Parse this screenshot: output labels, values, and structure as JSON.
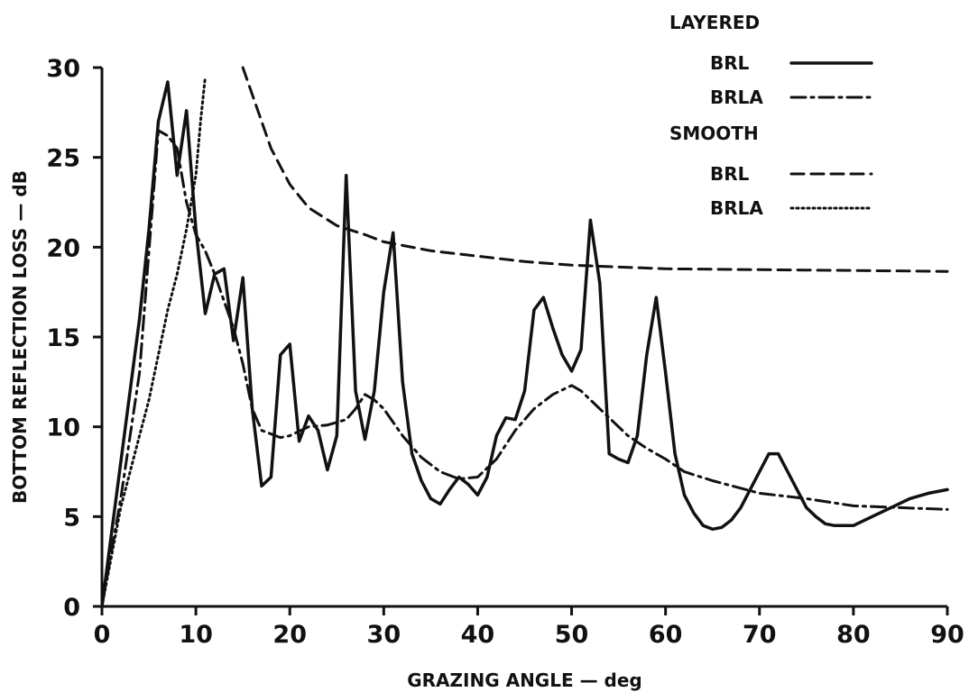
{
  "chart_data": {
    "type": "line",
    "xlabel": "GRAZING ANGLE — deg",
    "ylabel": "BOTTOM REFLECTION LOSS — dB",
    "xlim": [
      0,
      90
    ],
    "ylim": [
      0,
      30
    ],
    "xticks": [
      0,
      10,
      20,
      30,
      40,
      50,
      60,
      70,
      80,
      90
    ],
    "yticks": [
      0,
      5,
      10,
      15,
      20,
      25,
      30
    ],
    "grid": false,
    "legend_position": "top-right",
    "legend": {
      "groups": [
        {
          "title": "LAYERED",
          "entries": [
            {
              "label": "BRL",
              "style": "solid"
            },
            {
              "label": "BRLA",
              "style": "dashdot"
            }
          ]
        },
        {
          "title": "SMOOTH",
          "entries": [
            {
              "label": "BRL",
              "style": "dashed"
            },
            {
              "label": "BRLA",
              "style": "dotted"
            }
          ]
        }
      ]
    },
    "series": [
      {
        "group": "LAYERED",
        "name": "BRL",
        "style": "solid",
        "x": [
          0,
          2,
          4,
          5,
          6,
          7,
          8,
          9,
          10,
          11,
          12,
          13,
          14,
          15,
          16,
          17,
          18,
          19,
          20,
          21,
          22,
          23,
          24,
          25,
          26,
          27,
          28,
          29,
          30,
          31,
          32,
          33,
          34,
          35,
          36,
          37,
          38,
          39,
          40,
          41,
          42,
          43,
          44,
          45,
          46,
          47,
          48,
          49,
          50,
          51,
          52,
          53,
          54,
          55,
          56,
          57,
          58,
          59,
          60,
          61,
          62,
          63,
          64,
          65,
          66,
          67,
          68,
          69,
          70,
          71,
          72,
          73,
          74,
          75,
          76,
          77,
          78,
          80,
          82,
          84,
          86,
          88,
          90
        ],
        "y": [
          0,
          8,
          16,
          21,
          27,
          29.2,
          24,
          27.6,
          21,
          16.3,
          18.5,
          18.8,
          14.8,
          18.3,
          11,
          6.7,
          7.2,
          14,
          14.6,
          9.2,
          10.6,
          9.8,
          7.6,
          9.5,
          24,
          12,
          9.3,
          12,
          17.5,
          20.8,
          12.5,
          8.5,
          7,
          6,
          5.7,
          6.5,
          7.2,
          6.8,
          6.2,
          7.2,
          9.5,
          10.5,
          10.4,
          12,
          16.5,
          17.2,
          15.5,
          14,
          13.1,
          14.3,
          21.5,
          18,
          8.5,
          8.2,
          8,
          9.5,
          14,
          17.2,
          13,
          8.5,
          6.2,
          5.2,
          4.5,
          4.3,
          4.4,
          4.8,
          5.5,
          6.5,
          7.5,
          8.5,
          8.5,
          7.5,
          6.5,
          5.5,
          5,
          4.6,
          4.5,
          4.5,
          5,
          5.5,
          6,
          6.3,
          6.5
        ]
      },
      {
        "group": "LAYERED",
        "name": "BRLA",
        "style": "dashdot",
        "x": [
          0,
          2,
          4,
          6,
          7,
          8,
          9,
          10,
          11,
          12,
          13,
          14,
          15,
          16,
          17,
          18,
          19,
          20,
          22,
          24,
          26,
          27,
          28,
          29,
          30,
          32,
          34,
          36,
          38,
          40,
          42,
          44,
          46,
          48,
          50,
          51,
          52,
          54,
          56,
          58,
          60,
          62,
          65,
          70,
          75,
          80,
          85,
          90
        ],
        "y": [
          0,
          6,
          13,
          26.5,
          26.2,
          25.5,
          22.5,
          20.7,
          19.8,
          18.5,
          17,
          15.5,
          13.5,
          11,
          9.8,
          9.6,
          9.4,
          9.5,
          10,
          10.1,
          10.4,
          11,
          11.8,
          11.5,
          11,
          9.5,
          8.3,
          7.5,
          7.1,
          7.2,
          8.2,
          9.8,
          11,
          11.8,
          12.3,
          12,
          11.5,
          10.5,
          9.5,
          8.8,
          8.2,
          7.5,
          7,
          6.3,
          6,
          5.6,
          5.5,
          5.4
        ]
      },
      {
        "group": "SMOOTH",
        "name": "BRL",
        "style": "dashed",
        "x": [
          15,
          16,
          18,
          20,
          22,
          25,
          28,
          30,
          35,
          40,
          45,
          50,
          55,
          60,
          70,
          80,
          90
        ],
        "y": [
          30,
          28.5,
          25.5,
          23.5,
          22.2,
          21.2,
          20.7,
          20.3,
          19.8,
          19.5,
          19.2,
          19,
          18.9,
          18.8,
          18.75,
          18.7,
          18.65
        ]
      },
      {
        "group": "SMOOTH",
        "name": "BRLA",
        "style": "dotted",
        "x": [
          0,
          2,
          4,
          5,
          6,
          7,
          8,
          9,
          10,
          10.5,
          11
        ],
        "y": [
          0,
          5.5,
          9.5,
          11.5,
          14,
          16.5,
          18.5,
          21,
          24,
          27,
          29.5
        ]
      }
    ]
  }
}
